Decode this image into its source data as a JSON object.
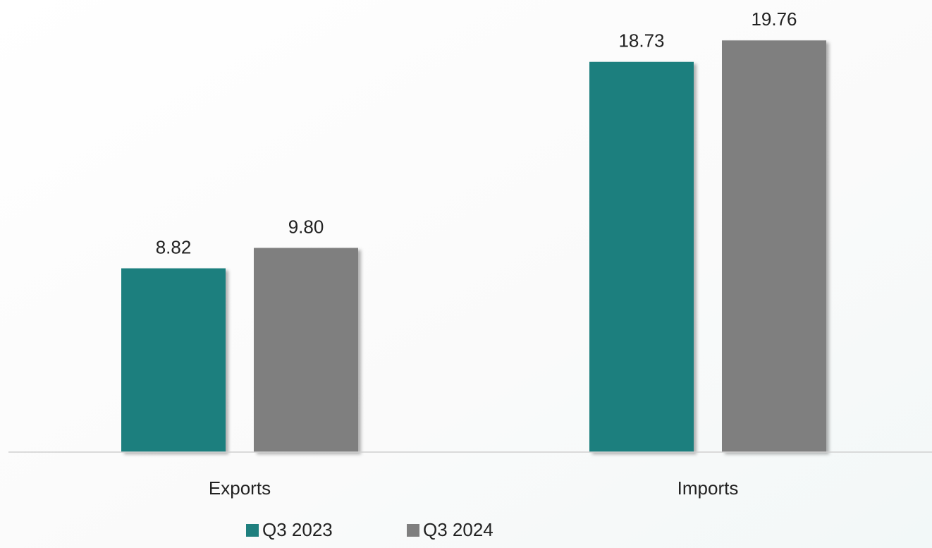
{
  "chart_data": {
    "type": "bar",
    "categories": [
      "Exports",
      "Imports"
    ],
    "series": [
      {
        "name": "Q3 2023",
        "color": "#1f7f7e",
        "values": [
          8.82,
          18.73
        ],
        "value_labels": [
          "8.82",
          "18.73"
        ]
      },
      {
        "name": "Q3 2024",
        "color": "#7f7f7f",
        "values": [
          9.8,
          19.76
        ],
        "value_labels": [
          "9.80",
          "19.76"
        ]
      }
    ],
    "ylim": [
      0,
      21.7
    ],
    "legend": "bottom"
  }
}
